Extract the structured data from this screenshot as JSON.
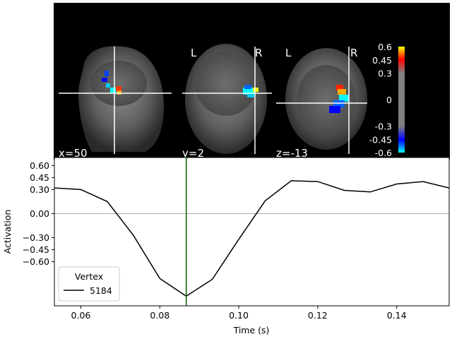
{
  "brain_panel": {
    "views": [
      {
        "coord_label": "x=50",
        "left_label": "",
        "right_label": ""
      },
      {
        "coord_label": "y=2",
        "left_label": "L",
        "right_label": "R"
      },
      {
        "coord_label": "z=-13",
        "left_label": "L",
        "right_label": "R"
      }
    ],
    "colorbar": {
      "tick_labels": [
        "0.6",
        "0.45",
        "0.3",
        "0",
        "-0.3",
        "-0.45",
        "-0.6"
      ],
      "colors": [
        "#ffff00",
        "#ff0000",
        "#808080",
        "#0000ff",
        "#00ffff"
      ]
    }
  },
  "chart_data": {
    "type": "line",
    "xlabel": "Time (s)",
    "ylabel": "Activation",
    "xlim": [
      0.0533,
      0.1533
    ],
    "ylim": [
      -1.15,
      0.7
    ],
    "x_ticks": [
      0.06,
      0.08,
      0.1,
      0.12,
      0.14
    ],
    "x_tick_labels": [
      "0.06",
      "0.08",
      "0.10",
      "0.12",
      "0.14"
    ],
    "y_ticks": [
      0.6,
      0.45,
      0.3,
      0.0,
      -0.3,
      -0.45,
      -0.6
    ],
    "y_tick_labels": [
      "0.60",
      "0.45",
      "0.30",
      "0.00",
      "−0.30",
      "−0.45",
      "−0.60"
    ],
    "zero_line": true,
    "cursor_x": 0.0867,
    "cursor_color": "#006400",
    "legend": {
      "title": "Vertex",
      "placement": "lower-left"
    },
    "series": [
      {
        "name": "5184",
        "color": "#000000",
        "x": [
          0.0533,
          0.06,
          0.0667,
          0.0733,
          0.08,
          0.0867,
          0.0933,
          0.1,
          0.1067,
          0.1133,
          0.12,
          0.1267,
          0.1333,
          0.14,
          0.1467,
          0.1533
        ],
        "y": [
          0.32,
          0.3,
          0.15,
          -0.27,
          -0.81,
          -1.03,
          -0.82,
          -0.32,
          0.16,
          0.41,
          0.4,
          0.29,
          0.27,
          0.37,
          0.4,
          0.32
        ]
      }
    ]
  }
}
